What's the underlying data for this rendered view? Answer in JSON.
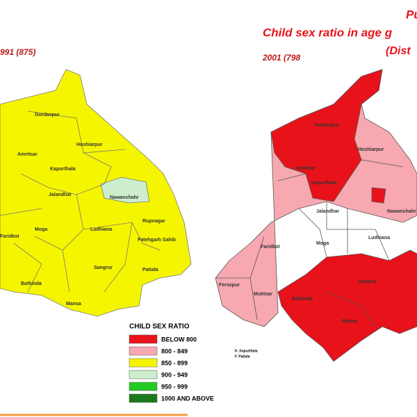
{
  "header": {
    "title_prefix": "Pu",
    "title": "Child sex ratio in age g",
    "subtitle": "(Dist"
  },
  "maps": [
    {
      "year_label": "991 (875)",
      "districts": [
        "Gurdaspur",
        "Amritsar",
        "Hoshiarpur",
        "Kapurthala",
        "Nawanshahr",
        "Jalandhar",
        "Rupnagar",
        "Moga",
        "Ludhiana",
        "Fatehgarh Sahib",
        "Faridkot",
        "Sangrur",
        "Patiala",
        "Bathinda",
        "Mansa"
      ]
    },
    {
      "year_label": "2001 (798",
      "districts": [
        "Gurdaspur",
        "Amritsar",
        "Hoshiarpur",
        "Kapurthala",
        "Jalandhar",
        "Nawanshahr",
        "Faridkot",
        "Moga",
        "Ludhiana",
        "Ferozpur",
        "Muktsar",
        "Sangrur",
        "Bathinda",
        "Mansa"
      ]
    }
  ],
  "legend": {
    "title": "CHILD SEX RATIO",
    "items": [
      {
        "label": "BELOW 800",
        "color": "#e8121a"
      },
      {
        "label": "800 - 849",
        "color": "#f7a8b0"
      },
      {
        "label": "850 - 899",
        "color": "#f5f500"
      },
      {
        "label": "900 - 949",
        "color": "#cdeecd"
      },
      {
        "label": "950 - 999",
        "color": "#22cc22"
      },
      {
        "label": "1000 AND ABOVE",
        "color": "#1a7a1a"
      }
    ]
  },
  "notes": [
    "K. Kapurthala",
    "F. Patiala"
  ]
}
